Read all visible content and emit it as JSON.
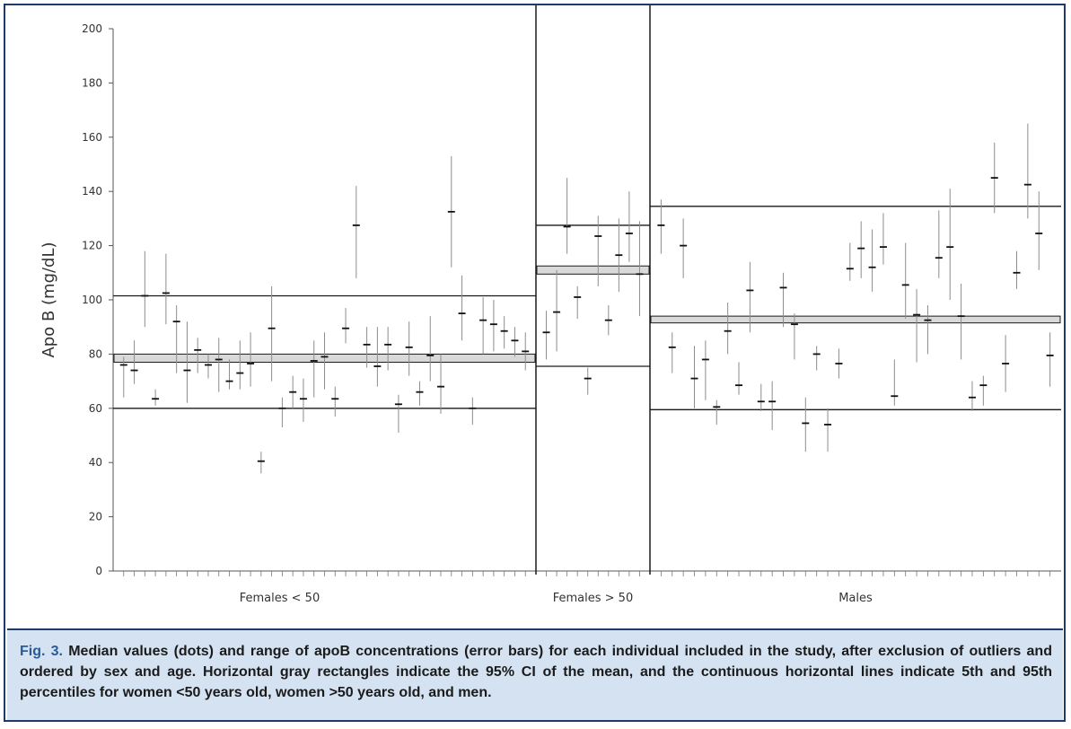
{
  "chart_data": {
    "type": "scatter",
    "subtype": "median with range error bars",
    "ylabel": "Apo B (mg/dL)",
    "xlabel": "",
    "ylim": [
      0,
      200
    ],
    "yticks": [
      0,
      20,
      40,
      60,
      80,
      100,
      120,
      140,
      160,
      180,
      200
    ],
    "grid": false,
    "legend": "none",
    "groups": [
      {
        "label": "Females < 50",
        "p5": 60,
        "p95": 101.5,
        "ci_low": 77,
        "ci_high": 80,
        "points": [
          {
            "median": 76,
            "low": 64,
            "high": 79
          },
          {
            "median": 74,
            "low": 69,
            "high": 85
          },
          {
            "median": 101.5,
            "low": 90,
            "high": 118
          },
          {
            "median": 63.5,
            "low": 61,
            "high": 67
          },
          {
            "median": 102.5,
            "low": 91,
            "high": 117
          },
          {
            "median": 92,
            "low": 73,
            "high": 98
          },
          {
            "median": 74,
            "low": 62,
            "high": 92
          },
          {
            "median": 81.5,
            "low": 73,
            "high": 86
          },
          {
            "median": 76,
            "low": 71,
            "high": 80
          },
          {
            "median": 78,
            "low": 66,
            "high": 86
          },
          {
            "median": 70,
            "low": 67,
            "high": 78
          },
          {
            "median": 73,
            "low": 67,
            "high": 85
          },
          {
            "median": 76.5,
            "low": 68,
            "high": 88
          },
          {
            "median": 40.5,
            "low": 36,
            "high": 44
          },
          {
            "median": 89.5,
            "low": 70,
            "high": 105
          },
          {
            "median": 60,
            "low": 53,
            "high": 64
          },
          {
            "median": 66,
            "low": 60,
            "high": 72
          },
          {
            "median": 63.5,
            "low": 55,
            "high": 71
          },
          {
            "median": 77.5,
            "low": 64,
            "high": 85
          },
          {
            "median": 79,
            "low": 67,
            "high": 88
          },
          {
            "median": 63.5,
            "low": 57,
            "high": 68
          },
          {
            "median": 89.5,
            "low": 84,
            "high": 97
          },
          {
            "median": 127.5,
            "low": 108,
            "high": 142
          },
          {
            "median": 83.5,
            "low": 75,
            "high": 90
          },
          {
            "median": 75.5,
            "low": 68,
            "high": 90
          },
          {
            "median": 83.5,
            "low": 74,
            "high": 90
          },
          {
            "median": 61.5,
            "low": 51,
            "high": 65
          },
          {
            "median": 82.5,
            "low": 72,
            "high": 92
          },
          {
            "median": 66,
            "low": 61,
            "high": 70
          },
          {
            "median": 79.5,
            "low": 70,
            "high": 94
          },
          {
            "median": 68,
            "low": 58,
            "high": 80
          },
          {
            "median": 132.5,
            "low": 112,
            "high": 153
          },
          {
            "median": 95,
            "low": 85,
            "high": 109
          },
          {
            "median": 60,
            "low": 54,
            "high": 64
          },
          {
            "median": 92.5,
            "low": 80,
            "high": 101
          },
          {
            "median": 91,
            "low": 81,
            "high": 100
          },
          {
            "median": 88.5,
            "low": 82,
            "high": 94
          },
          {
            "median": 85,
            "low": 79,
            "high": 90
          },
          {
            "median": 81,
            "low": 74,
            "high": 88
          }
        ]
      },
      {
        "label": "Females > 50",
        "p5": 75.5,
        "p95": 127.5,
        "ci_low": 109.5,
        "ci_high": 112.5,
        "points": [
          {
            "median": 88,
            "low": 78,
            "high": 96
          },
          {
            "median": 95.5,
            "low": 81,
            "high": 111
          },
          {
            "median": 127,
            "low": 117,
            "high": 145
          },
          {
            "median": 101,
            "low": 93,
            "high": 105
          },
          {
            "median": 71,
            "low": 65,
            "high": 75
          },
          {
            "median": 123.5,
            "low": 105,
            "high": 131
          },
          {
            "median": 92.5,
            "low": 87,
            "high": 98
          },
          {
            "median": 116.5,
            "low": 103,
            "high": 130
          },
          {
            "median": 124.5,
            "low": 114,
            "high": 140
          },
          {
            "median": 109.5,
            "low": 94,
            "high": 129
          }
        ]
      },
      {
        "label": "Males",
        "p5": 59.5,
        "p95": 134.5,
        "ci_low": 91.5,
        "ci_high": 94,
        "points": [
          {
            "median": 127.5,
            "low": 117,
            "high": 137
          },
          {
            "median": 82.5,
            "low": 73,
            "high": 88
          },
          {
            "median": 120,
            "low": 108,
            "high": 130
          },
          {
            "median": 71,
            "low": 60,
            "high": 83
          },
          {
            "median": 78,
            "low": 63,
            "high": 85
          },
          {
            "median": 60.5,
            "low": 54,
            "high": 63
          },
          {
            "median": 88.5,
            "low": 80,
            "high": 99
          },
          {
            "median": 68.5,
            "low": 65,
            "high": 77
          },
          {
            "median": 103.5,
            "low": 88,
            "high": 114
          },
          {
            "median": 62.5,
            "low": 59,
            "high": 69
          },
          {
            "median": 62.5,
            "low": 52,
            "high": 70
          },
          {
            "median": 104.5,
            "low": 90,
            "high": 110
          },
          {
            "median": 91,
            "low": 78,
            "high": 95
          },
          {
            "median": 54.5,
            "low": 44,
            "high": 64
          },
          {
            "median": 80,
            "low": 74,
            "high": 83
          },
          {
            "median": 54,
            "low": 44,
            "high": 60
          },
          {
            "median": 76.5,
            "low": 71,
            "high": 82
          },
          {
            "median": 111.5,
            "low": 107,
            "high": 121
          },
          {
            "median": 119,
            "low": 108,
            "high": 129
          },
          {
            "median": 112,
            "low": 103,
            "high": 126
          },
          {
            "median": 119.5,
            "low": 113,
            "high": 132
          },
          {
            "median": 64.5,
            "low": 61,
            "high": 78
          },
          {
            "median": 105.5,
            "low": 93,
            "high": 121
          },
          {
            "median": 94.5,
            "low": 77,
            "high": 104
          },
          {
            "median": 92.5,
            "low": 80,
            "high": 98
          },
          {
            "median": 115.5,
            "low": 108,
            "high": 133
          },
          {
            "median": 119.5,
            "low": 100,
            "high": 141
          },
          {
            "median": 94,
            "low": 78,
            "high": 106
          },
          {
            "median": 64,
            "low": 59,
            "high": 70
          },
          {
            "median": 68.5,
            "low": 61,
            "high": 72
          },
          {
            "median": 145,
            "low": 132,
            "high": 158
          },
          {
            "median": 76.5,
            "low": 66,
            "high": 87
          },
          {
            "median": 110,
            "low": 104,
            "high": 118
          },
          {
            "median": 142.5,
            "low": 130,
            "high": 165
          },
          {
            "median": 124.5,
            "low": 111,
            "high": 140
          },
          {
            "median": 79.5,
            "low": 68,
            "high": 88
          }
        ]
      }
    ]
  },
  "caption": {
    "label": "Fig. 3.",
    "text": "Median values (dots) and range of apoB concentrations (error bars) for each individual included in the study, after exclusion of outliers and ordered by sex and age. Horizontal gray rectangles indicate the 95% CI of the mean, and the continuous horizontal lines indicate 5th and 95th percentiles for women <50 years old, women >50 years old, and men."
  },
  "colors": {
    "frame": "#1e3a66",
    "caption_background": "#d4e2f1",
    "caption_label": "#2b5a98",
    "ci_fill": "#d9d9d9",
    "lines": "#1a1a1a",
    "error_bars": "#8c8c8c"
  }
}
